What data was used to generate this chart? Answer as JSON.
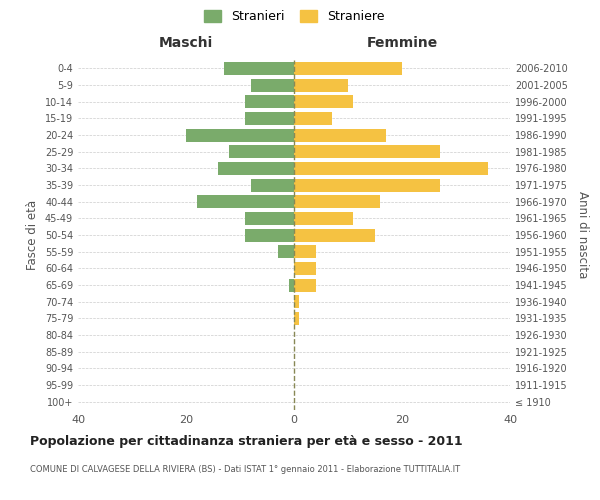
{
  "age_groups": [
    "100+",
    "95-99",
    "90-94",
    "85-89",
    "80-84",
    "75-79",
    "70-74",
    "65-69",
    "60-64",
    "55-59",
    "50-54",
    "45-49",
    "40-44",
    "35-39",
    "30-34",
    "25-29",
    "20-24",
    "15-19",
    "10-14",
    "5-9",
    "0-4"
  ],
  "birth_years": [
    "≤ 1910",
    "1911-1915",
    "1916-1920",
    "1921-1925",
    "1926-1930",
    "1931-1935",
    "1936-1940",
    "1941-1945",
    "1946-1950",
    "1951-1955",
    "1956-1960",
    "1961-1965",
    "1966-1970",
    "1971-1975",
    "1976-1980",
    "1981-1985",
    "1986-1990",
    "1991-1995",
    "1996-2000",
    "2001-2005",
    "2006-2010"
  ],
  "maschi": [
    0,
    0,
    0,
    0,
    0,
    0,
    0,
    1,
    0,
    3,
    9,
    9,
    18,
    8,
    14,
    12,
    20,
    9,
    9,
    8,
    13
  ],
  "femmine": [
    0,
    0,
    0,
    0,
    0,
    1,
    1,
    4,
    4,
    4,
    15,
    11,
    16,
    27,
    36,
    27,
    17,
    7,
    11,
    10,
    20
  ],
  "color_maschi": "#7aab6b",
  "color_femmine": "#f5c242",
  "title": "Popolazione per cittadinanza straniera per età e sesso - 2011",
  "subtitle": "COMUNE DI CALVAGESE DELLA RIVIERA (BS) - Dati ISTAT 1° gennaio 2011 - Elaborazione TUTTITALIA.IT",
  "xlabel_left": "Maschi",
  "xlabel_right": "Femmine",
  "ylabel_left": "Fasce di età",
  "ylabel_right": "Anni di nascita",
  "legend_maschi": "Stranieri",
  "legend_femmine": "Straniere",
  "xlim": 40,
  "background_color": "#ffffff",
  "grid_color": "#cccccc",
  "text_color": "#555555",
  "dashed_line_color": "#888855"
}
